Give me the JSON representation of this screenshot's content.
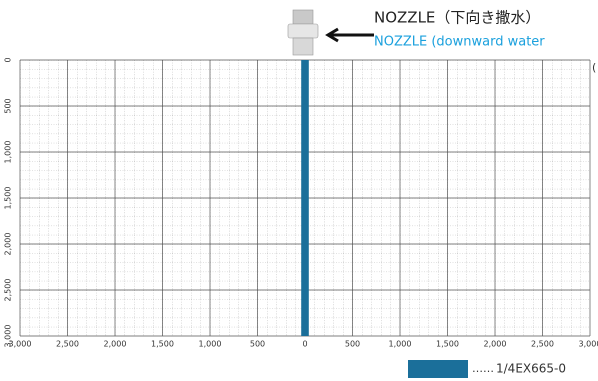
{
  "chart_data": {
    "type": "spray",
    "title": "NOZZLE（下向き撒水）",
    "subtitle": "NOZZLE (downward water",
    "edge_text": "(",
    "legend_leader": "……",
    "xlim": [
      -3000,
      3000
    ],
    "xticks": [
      {
        "value": -3000,
        "label": "3,000"
      },
      {
        "value": -2500,
        "label": "2,500"
      },
      {
        "value": -2000,
        "label": "2,000"
      },
      {
        "value": -1500,
        "label": "1,500"
      },
      {
        "value": -1000,
        "label": "1,000"
      },
      {
        "value": -500,
        "label": "500"
      },
      0,
      500,
      {
        "value": 1000,
        "label": "1,000"
      },
      {
        "value": 1500,
        "label": "1,500"
      },
      {
        "value": 2000,
        "label": "2,000"
      },
      {
        "value": 2500,
        "label": "2,500"
      },
      {
        "value": 3000,
        "label": "3,000"
      }
    ],
    "ylim": [
      0,
      3000
    ],
    "yticks": [
      0,
      500,
      {
        "value": 1000,
        "label": "1,000"
      },
      {
        "value": 1500,
        "label": "1,500"
      },
      {
        "value": 2000,
        "label": "2,000"
      },
      {
        "value": 2500,
        "label": "2,500"
      },
      {
        "value": 3000,
        "label": "3,000"
      }
    ],
    "minor_step": 100,
    "grid": true,
    "series": [
      {
        "name": "1/4EX665-0",
        "color": "#1b6f9a",
        "xrange": [
          -40,
          40
        ],
        "yrange": [
          0,
          3000
        ]
      }
    ]
  }
}
